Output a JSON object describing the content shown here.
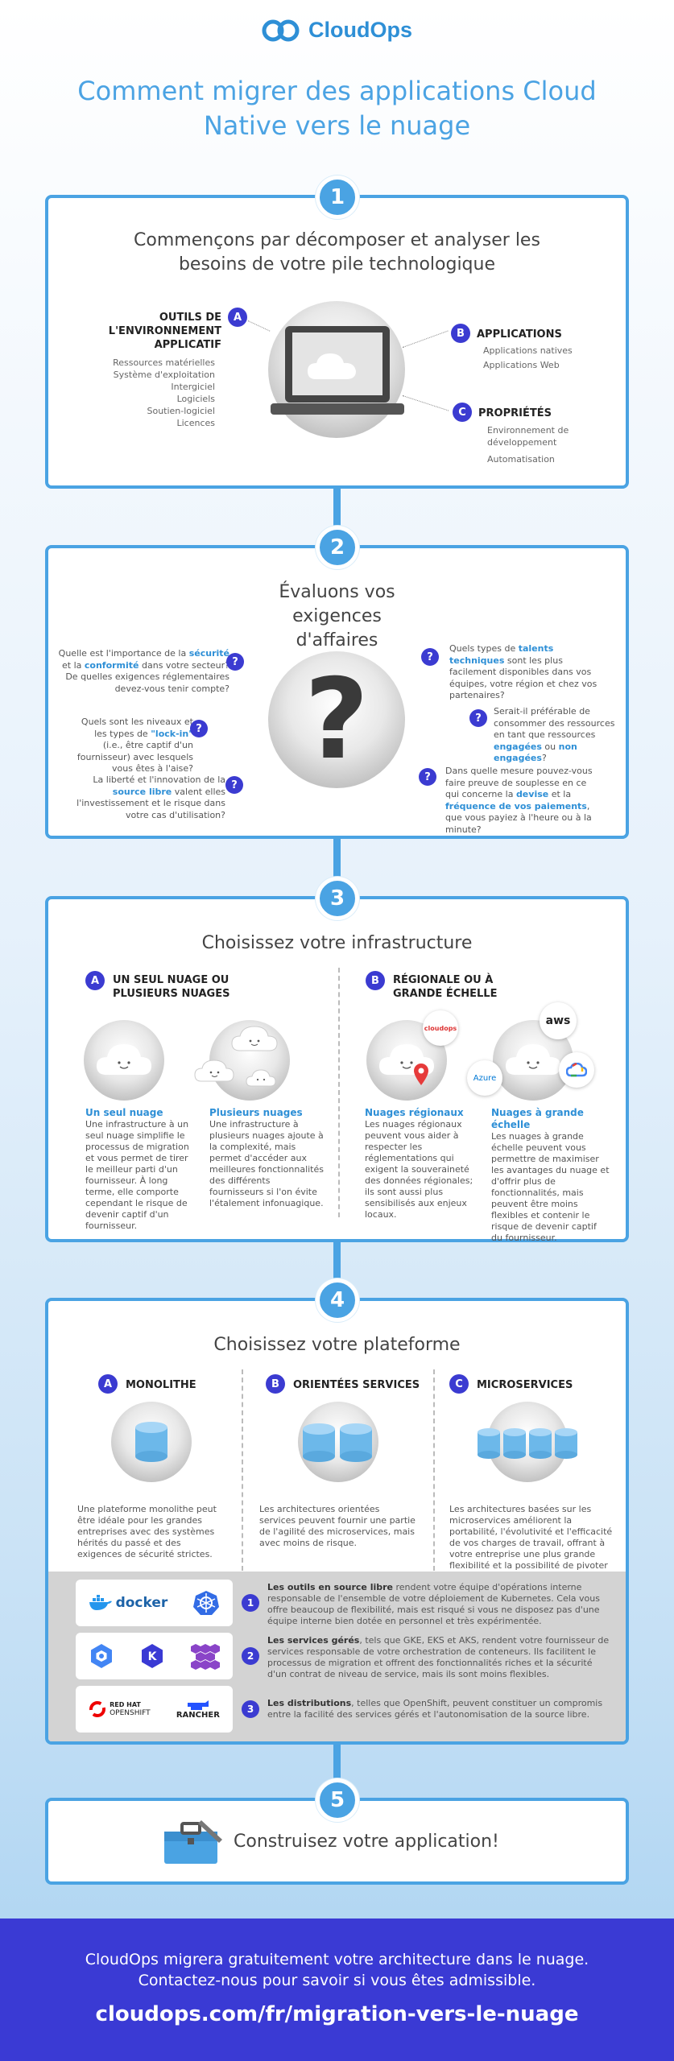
{
  "header": {
    "logo_text": "CloudOps",
    "title": "Comment migrer des applications Cloud Native vers le nuage"
  },
  "colors": {
    "accent": "#4aa3e3",
    "badge": "#3b3bd1",
    "footer": "#3a3ad4"
  },
  "sections": {
    "s1": {
      "number": "1",
      "title": "Commençons par décomposer et analyser les besoins de votre pile technologique",
      "a": {
        "badge": "A",
        "label": "OUTILS DE L'ENVIRONNEMENT APPLICATIF",
        "items": [
          "Ressources matérielles",
          "Système d'exploitation",
          "Intergiciel",
          "Logiciels",
          "Soutien-logiciel",
          "Licences"
        ]
      },
      "b": {
        "badge": "B",
        "label": "APPLICATIONS",
        "items": [
          "Applications natives",
          "Applications Web"
        ]
      },
      "c": {
        "badge": "C",
        "label": "PROPRIÉTÉS",
        "items": [
          "Environnement de développement",
          "Automatisation"
        ]
      }
    },
    "s2": {
      "number": "2",
      "title": "Évaluons vos exigences d'affaires",
      "q1": {
        "t1": "Quelle est l'importance de la ",
        "k1": "sécurité",
        "t2": " et la ",
        "k2": "conformité",
        "t3": " dans votre secteur? De quelles exigences réglementaires devez-vous tenir compte?"
      },
      "q2": {
        "t1": "Quels sont les niveaux et les types de ",
        "k1": "\"lock-in\"",
        "t2": " (i.e., être captif d'un fournisseur) avec lesquels vous êtes à l'aise?"
      },
      "q3": {
        "t1": "La liberté et l'innovation de la ",
        "k1": "source libre",
        "t2": " valent elles l'investissement et le risque dans votre cas d'utilisation?"
      },
      "q4": {
        "t1": "Quels types de ",
        "k1": "talents techniques",
        "t2": " sont les plus facilement disponibles dans vos équipes, votre région et chez vos partenaires?"
      },
      "q5": {
        "t1": "Serait-il préférable de consommer des ressources en tant que ressources ",
        "k1": "engagées",
        "t2": " ou ",
        "k2": "non engagées",
        "t3": "?"
      },
      "q6": {
        "t1": "Dans quelle mesure pouvez-vous faire preuve de souplesse en ce qui concerne la ",
        "k1": "devise",
        "t2": " et la ",
        "k2": "fréquence de vos paiements",
        "t3": ", que vous payiez à l'heure ou à la minute?"
      },
      "qmark": "?"
    },
    "s3": {
      "number": "3",
      "title": "Choisissez votre infrastructure",
      "a": {
        "badge": "A",
        "label": "UN SEUL NUAGE OU PLUSIEURS NUAGES"
      },
      "b": {
        "badge": "B",
        "label": "RÉGIONALE OU À GRANDE ÉCHELLE"
      },
      "cards": [
        {
          "title": "Un seul nuage",
          "text": "Une infrastructure à un seul nuage simplifie le processus de migration et vous permet de tirer le meilleur parti d'un fournisseur. À long terme, elle comporte cependant le risque de devenir captif d'un fournisseur."
        },
        {
          "title": "Plusieurs nuages",
          "text": "Une infrastructure à plusieurs nuages ajoute à la complexité, mais permet d'accéder aux meilleures fonctionnalités des différents fournisseurs si l'on évite l'étalement infonuagique."
        },
        {
          "title": "Nuages régionaux",
          "text": "Les nuages régionaux peuvent vous aider à respecter les réglementations qui exigent la souveraineté des données régionales; ils sont aussi plus sensibilisés aux enjeux locaux."
        },
        {
          "title": "Nuages à grande échelle",
          "text": "Les nuages à grande échelle peuvent vous permettre de maximiser les avantages du nuage et d'offrir plus de fonctionnalités, mais peuvent être moins flexibles et contenir le risque de devenir captif du fournisseur."
        }
      ],
      "logos": {
        "cloudops": "cloudops",
        "azure": "Azure",
        "aws": "aws"
      }
    },
    "s4": {
      "number": "4",
      "title": "Choisissez votre plateforme",
      "cols": [
        {
          "badge": "A",
          "label": "MONOLITHE",
          "text": "Une plateforme monolithe peut être idéale pour les grandes entreprises avec des systèmes hérités du passé et des exigences de sécurité strictes."
        },
        {
          "badge": "B",
          "label": "ORIENTÉES SERVICES",
          "text": "Les architectures orientées services peuvent fournir une partie de l'agilité des microservices, mais avec moins de risque."
        },
        {
          "badge": "C",
          "label": "MICROSERVICES",
          "text": "Les architectures basées sur les microservices améliorent la portabilité, l'évolutivité et l'efficacité de vos charges de travail, offrant à votre entreprise une plus grande flexibilité et la possibilité de pivoter en cas de besoin."
        }
      ],
      "tools": [
        {
          "n": "1",
          "bold": "Les outils en source libre",
          "text": " rendent votre équipe d'opérations interne responsable de l'ensemble de votre déploiement de Kubernetes. Cela vous offre beaucoup de flexibilité, mais est risqué si vous ne disposez pas d'une équipe interne bien dotée en personnel et très expérimentée.",
          "logo1": "docker"
        },
        {
          "n": "2",
          "bold": "Les services gérés",
          "text": ", tels que GKE, EKS et AKS, rendent votre fournisseur de services responsable de votre orchestration de conteneurs. Ils facilitent le processus de migration et offrent des fonctionnalités riches et la sécurité d'un contrat de niveau de service, mais ils sont moins flexibles.",
          "logo1": "K"
        },
        {
          "n": "3",
          "bold": "Les distributions",
          "text": ", telles que OpenShift, peuvent constituer un compromis entre la facilité des services gérés et l'autonomisation de la source libre.",
          "logo1": "RED HAT",
          "logo1b": "OPENSHIFT",
          "logo2": "RANCHER"
        }
      ]
    },
    "s5": {
      "number": "5",
      "title": "Construisez votre application!"
    }
  },
  "footer": {
    "line1": "CloudOps migrera gratuitement votre architecture dans le nuage.",
    "line2": "Contactez-nous pour savoir si vous êtes admissible.",
    "url": "cloudops.com/fr/migration-vers-le-nuage"
  }
}
